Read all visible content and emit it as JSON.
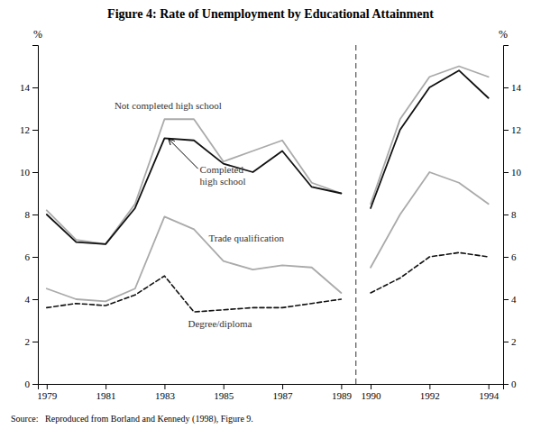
{
  "chart_data": {
    "type": "line",
    "title": "Figure 4: Rate of Unemployment by Educational Attainment",
    "source": "Source:   Reproduced from Borland and Kennedy (1998), Figure 9.",
    "ylabel": "%",
    "y2label": "%",
    "x": [
      1979,
      1980,
      1981,
      1982,
      1983,
      1984,
      1985,
      1986,
      1987,
      1988,
      1989,
      1990,
      1991,
      1992,
      1993,
      1994
    ],
    "xlim": [
      1978.7,
      1994.5
    ],
    "xticks": [
      1979,
      1981,
      1983,
      1985,
      1987,
      1989,
      1990,
      1992,
      1994
    ],
    "ylim": [
      0,
      16
    ],
    "yticks": [
      0,
      2,
      4,
      6,
      8,
      10,
      12,
      14
    ],
    "y2lim": [
      0,
      16
    ],
    "y2ticks": [
      0,
      2,
      4,
      6,
      8,
      10,
      12,
      14
    ],
    "grid": false,
    "series": [
      {
        "color": "#aaaaaa",
        "line_style": "solid",
        "values": [
          8.2,
          6.8,
          6.6,
          8.5,
          12.5,
          12.5,
          10.5,
          11.0,
          11.5,
          9.5,
          9.0,
          null,
          null,
          null,
          null,
          null
        ]
      },
      {
        "color": "#111111",
        "line_style": "solid",
        "values": [
          8.0,
          6.7,
          6.6,
          8.3,
          11.6,
          11.5,
          10.4,
          10.0,
          11.0,
          9.3,
          9.0,
          null,
          null,
          null,
          null,
          null
        ]
      },
      {
        "color": "#aaaaaa",
        "line_style": "solid",
        "values": [
          4.5,
          4.0,
          3.9,
          4.5,
          7.9,
          7.3,
          5.8,
          5.4,
          5.6,
          5.5,
          4.3,
          null,
          null,
          null,
          null,
          null
        ]
      },
      {
        "color": "#111111",
        "line_style": "dashed",
        "values": [
          3.6,
          3.8,
          3.7,
          4.2,
          5.1,
          3.4,
          3.5,
          3.6,
          3.6,
          3.8,
          4.0,
          null,
          null,
          null,
          null,
          null
        ]
      },
      {
        "color": "#aaaaaa",
        "line_style": "solid",
        "values": [
          null,
          null,
          null,
          null,
          null,
          null,
          null,
          null,
          null,
          null,
          null,
          8.5,
          12.5,
          14.5,
          15.0,
          14.5
        ]
      },
      {
        "color": "#111111",
        "line_style": "solid",
        "values": [
          null,
          null,
          null,
          null,
          null,
          null,
          null,
          null,
          null,
          null,
          null,
          8.3,
          12.0,
          14.0,
          14.8,
          13.5
        ]
      },
      {
        "color": "#aaaaaa",
        "line_style": "solid",
        "values": [
          null,
          null,
          null,
          null,
          null,
          null,
          null,
          null,
          null,
          null,
          null,
          5.5,
          8.0,
          10.0,
          9.5,
          8.5
        ]
      },
      {
        "color": "#111111",
        "line_style": "dashed",
        "values": [
          null,
          null,
          null,
          null,
          null,
          null,
          null,
          null,
          null,
          null,
          null,
          4.3,
          5.0,
          6.0,
          6.2,
          6.0
        ]
      }
    ],
    "separator_x": 1989.5,
    "annotations": [
      {
        "text": "Not completed high school",
        "x": 1981.3,
        "y": 13.1
      },
      {
        "text": "Completed\nhigh school",
        "x": 1984.2,
        "y": 9.8,
        "arrow_x": 1983.15,
        "arrow_y": 11.55
      },
      {
        "text": "Trade qualification",
        "x": 1984.5,
        "y": 6.85
      },
      {
        "text": "Degree/diploma",
        "x": 1983.8,
        "y": 2.8
      }
    ]
  }
}
